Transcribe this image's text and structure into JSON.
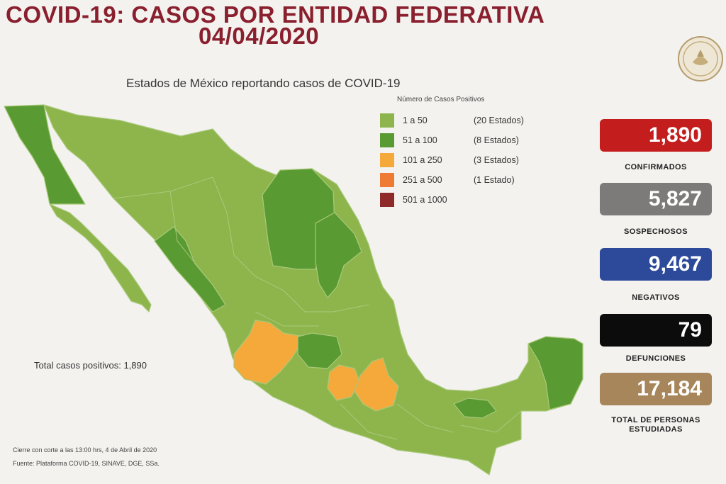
{
  "header": {
    "title": "COVID-19: CASOS POR ENTIDAD FEDERATIVA",
    "date": "04/04/2020"
  },
  "map": {
    "subtitle": "Estados de México reportando casos de COVID-19",
    "legend": {
      "title": "Número de Casos Positivos",
      "items": [
        {
          "range": "1 a    50",
          "count": "(20 Estados)",
          "color": "#8db54c"
        },
        {
          "range": "51 a   100",
          "count": "(8 Estados)",
          "color": "#5a9a32"
        },
        {
          "range": "101 a   250",
          "count": "(3 Estados)",
          "color": "#f4a93a"
        },
        {
          "range": "251 a   500",
          "count": "(1 Estado)",
          "color": "#ee7a33"
        },
        {
          "range": "501 a 1000",
          "count": "",
          "color": "#8e2a2a"
        }
      ]
    },
    "total": "Total casos positivos: 1,890",
    "colors": {
      "light_green": "#8db54c",
      "dark_green": "#5a9a32",
      "orange": "#f4a93a",
      "border": "#a9c97a"
    }
  },
  "stats": {
    "confirmed": {
      "value": "1,890",
      "label": "CONFIRMADOS",
      "color": "#c41d1d"
    },
    "suspected": {
      "value": "5,827",
      "label": "SOSPECHOSOS",
      "color": "#7c7b7a"
    },
    "negative": {
      "value": "9,467",
      "label": "NEGATIVOS",
      "color": "#2d4a9a"
    },
    "deaths": {
      "value": "79",
      "label": "DEFUNCIONES",
      "color": "#0c0c0c"
    },
    "studied": {
      "value": "17,184",
      "label": "TOTAL DE PERSONAS ESTUDIADAS",
      "color": "#a6865a"
    }
  },
  "footnotes": {
    "cutoff": "Cierre con corte a las 13:00 hrs, 4 de Abril de 2020",
    "source": "Fuente: Plataforma COVID-19, SINAVE, DGE, SSa."
  }
}
